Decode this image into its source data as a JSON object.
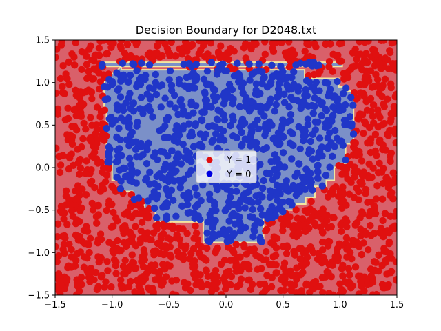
{
  "chart_data": {
    "type": "scatter",
    "title": "Decision Boundary for D2048.txt",
    "xlabel": "",
    "ylabel": "",
    "xlim": [
      -1.5,
      1.5
    ],
    "ylim": [
      -1.5,
      1.5
    ],
    "x_ticks": [
      -1.5,
      -1.0,
      -0.5,
      0.0,
      0.5,
      1.0,
      1.5
    ],
    "y_ticks": [
      -1.5,
      -1.0,
      -0.5,
      0.0,
      0.5,
      1.0,
      1.5
    ],
    "x_tick_labels": [
      "−1.5",
      "−1.0",
      "−0.5",
      "0.0",
      "0.5",
      "1.0",
      "1.5"
    ],
    "y_tick_labels": [
      "−1.5",
      "−1.0",
      "−0.5",
      "0.0",
      "0.5",
      "1.0",
      "1.5"
    ],
    "grid": false,
    "legend_position": "center",
    "series": [
      {
        "name": "Y = 1",
        "color": "#e01010",
        "region": "outside boundary",
        "approx_points": 1150
      },
      {
        "name": "Y = 0",
        "color": "#2036c8",
        "region": "inside boundary",
        "approx_points": 900
      }
    ],
    "background_regions": {
      "class_1_fill": "#d9606a",
      "class_0_fill": "#7b90c8",
      "boundary_color": "#f3e6a0"
    },
    "decision_boundary": [
      [
        -1.1,
        1.24
      ],
      [
        1.02,
        1.24
      ],
      [
        1.02,
        1.19
      ],
      [
        -0.92,
        1.19
      ],
      [
        -0.92,
        1.15
      ],
      [
        0.69,
        1.15
      ],
      [
        0.69,
        1.05
      ],
      [
        0.99,
        1.05
      ],
      [
        0.99,
        0.95
      ],
      [
        1.06,
        0.95
      ],
      [
        1.06,
        0.9
      ],
      [
        1.12,
        0.9
      ],
      [
        1.12,
        0.28
      ],
      [
        1.05,
        0.28
      ],
      [
        1.05,
        0.05
      ],
      [
        1.0,
        0.05
      ],
      [
        0.95,
        0.0
      ],
      [
        0.95,
        -0.15
      ],
      [
        0.88,
        -0.15
      ],
      [
        0.88,
        -0.22
      ],
      [
        0.78,
        -0.22
      ],
      [
        0.78,
        -0.35
      ],
      [
        0.7,
        -0.35
      ],
      [
        0.7,
        -0.43
      ],
      [
        0.61,
        -0.43
      ],
      [
        0.61,
        -0.5
      ],
      [
        0.52,
        -0.5
      ],
      [
        0.52,
        -0.6
      ],
      [
        0.33,
        -0.6
      ],
      [
        0.33,
        -0.88
      ],
      [
        -0.2,
        -0.88
      ],
      [
        -0.2,
        -0.64
      ],
      [
        -0.62,
        -0.64
      ],
      [
        -0.62,
        -0.48
      ],
      [
        -0.72,
        -0.48
      ],
      [
        -0.72,
        -0.38
      ],
      [
        -0.82,
        -0.38
      ],
      [
        -0.82,
        -0.28
      ],
      [
        -0.93,
        -0.28
      ],
      [
        -0.93,
        -0.15
      ],
      [
        -1.0,
        -0.15
      ],
      [
        -1.0,
        0.05
      ],
      [
        -1.05,
        0.05
      ],
      [
        -1.05,
        0.7
      ],
      [
        -1.07,
        0.7
      ],
      [
        -1.07,
        1.04
      ],
      [
        -1.0,
        1.1
      ],
      [
        -0.95,
        1.15
      ],
      [
        -0.92,
        1.19
      ],
      [
        -1.1,
        1.19
      ]
    ],
    "legend": {
      "entries": [
        {
          "label": "Y = 1",
          "color": "#e01010"
        },
        {
          "label": "Y = 0",
          "color": "#0000e0"
        }
      ]
    }
  }
}
